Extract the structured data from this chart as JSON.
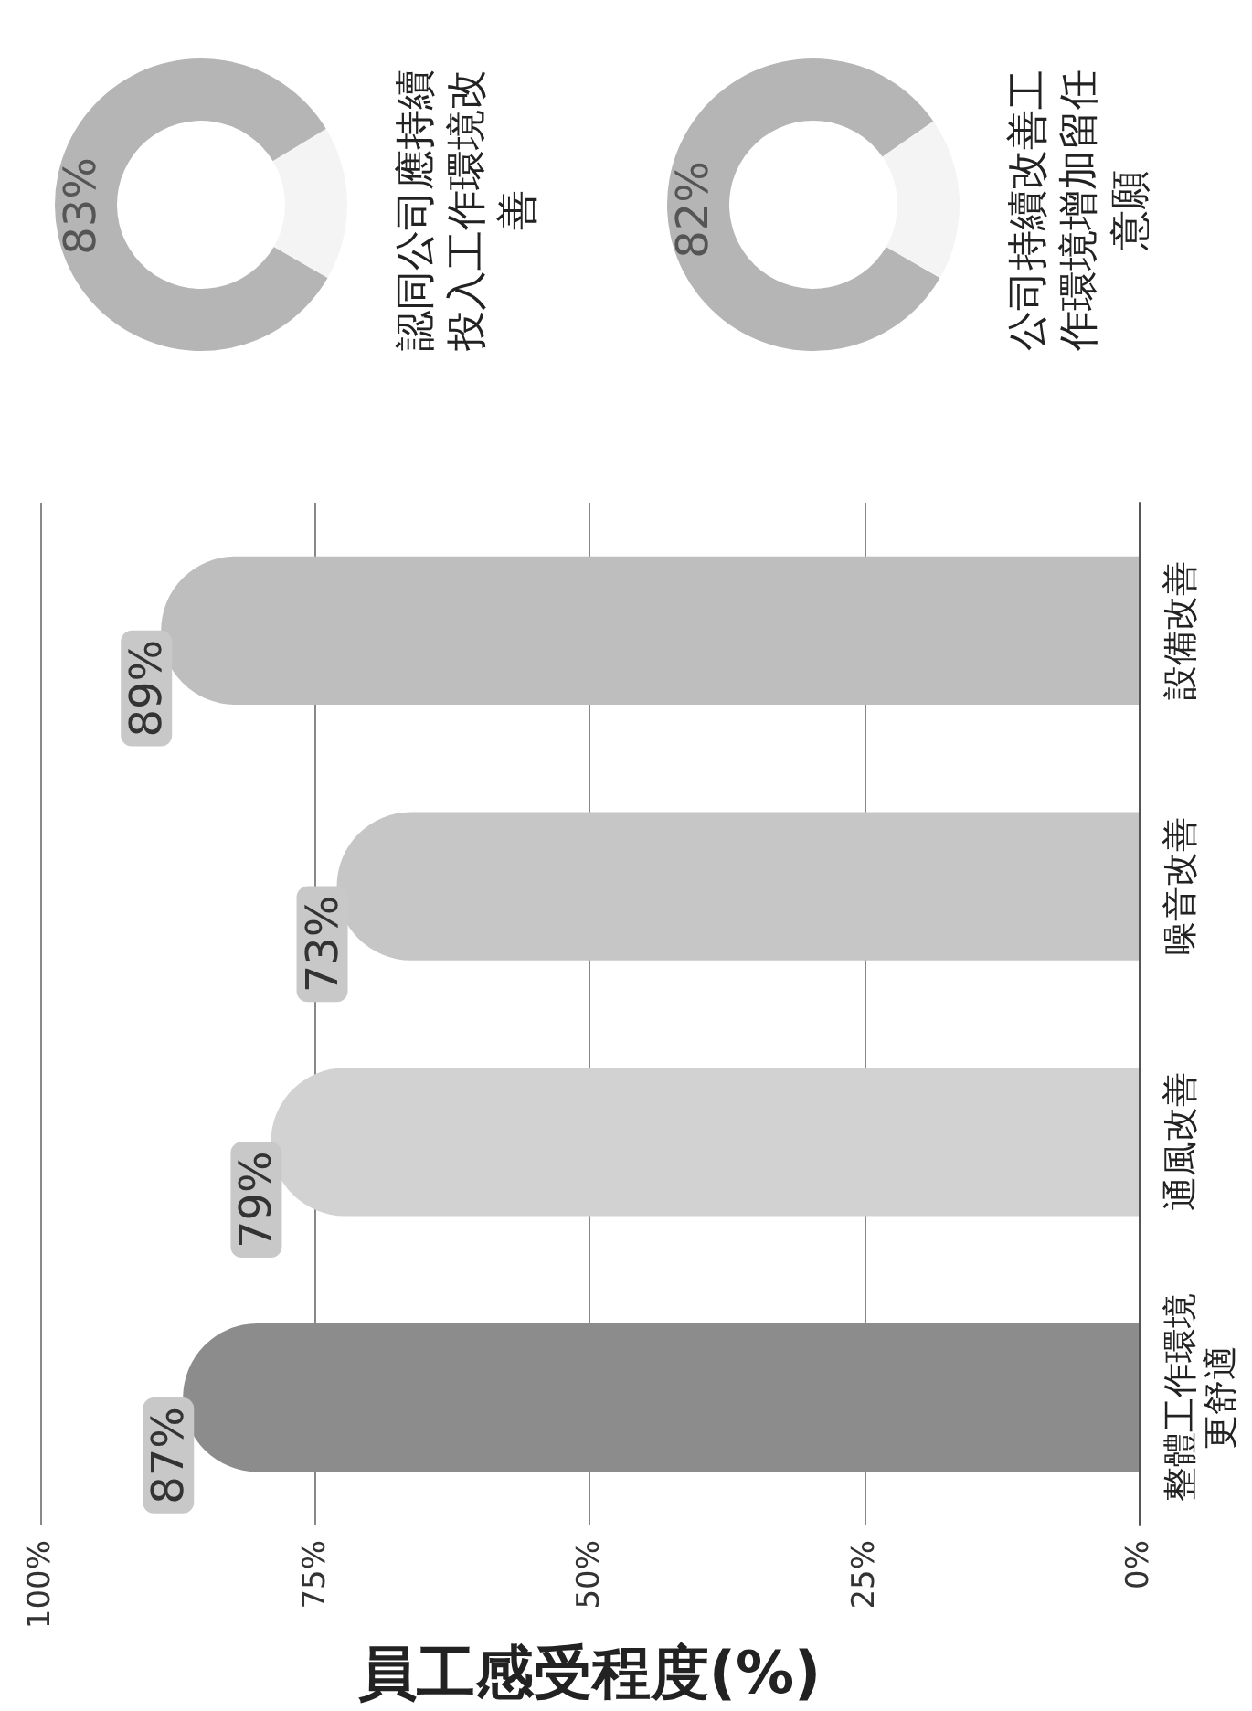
{
  "chart_data": [
    {
      "type": "bar",
      "orientation": "horizontal",
      "xlabel": "員工感受程度(%)",
      "categories": [
        "設備改善",
        "噪音改善",
        "通風改善",
        "整體工作環境更舒適"
      ],
      "values": [
        89,
        73,
        79,
        87
      ],
      "colors": [
        "#bebebe",
        "#c6c6c6",
        "#d2d2d2",
        "#8c8c8c"
      ],
      "value_labels": [
        "89%",
        "73%",
        "79%",
        "87%"
      ],
      "xlim": [
        100,
        0
      ],
      "xticks": [
        {
          "value": 100,
          "label": "100%"
        },
        {
          "value": 75,
          "label": "75%"
        },
        {
          "value": 50,
          "label": "50%"
        },
        {
          "value": 25,
          "label": "25%"
        },
        {
          "value": 0,
          "label": "0%"
        }
      ],
      "grid": "x"
    },
    {
      "type": "donut",
      "title": "認同公司應持續投入工作環境改善",
      "categories": [
        null,
        null
      ],
      "values": [
        83,
        17
      ],
      "colors": [
        "#b5b5b5",
        "#f4f4f4"
      ],
      "value_labels": [
        "83%",
        null
      ]
    },
    {
      "type": "donut",
      "title": "公司持續改善工作環境增加留任意願",
      "categories": [
        null,
        null
      ],
      "values": [
        82,
        18
      ],
      "colors": [
        "#b5b5b5",
        "#f4f4f4"
      ],
      "value_labels": [
        "82%",
        null
      ]
    }
  ]
}
